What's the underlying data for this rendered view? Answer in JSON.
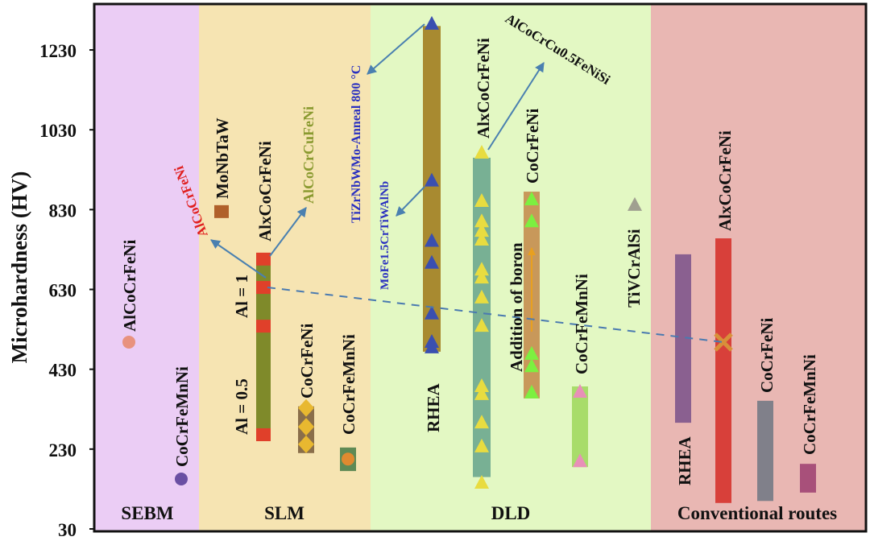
{
  "chart_data": {
    "type": "bar",
    "subtype": "floating range bars with markers",
    "title": "",
    "xlabel": "",
    "ylabel": "Microhardness (HV)",
    "ylim": [
      30,
      1330
    ],
    "yticks": [
      30,
      230,
      430,
      630,
      830,
      1030,
      1230
    ],
    "grid": false,
    "regions": [
      {
        "name": "SEBM",
        "color": "#ebcdf5"
      },
      {
        "name": "SLM",
        "color": "#f6e4b2"
      },
      {
        "name": "DLD",
        "color": "#e3f8c3"
      },
      {
        "name": "Conventional routes",
        "color": "#e9b7b3"
      }
    ],
    "items": [
      {
        "label": "AlCoCrFeNi",
        "region": "SEBM",
        "range": null,
        "points": [
          498
        ],
        "marker": "circle",
        "marker_color": "#e8927e",
        "bar_color": null
      },
      {
        "label": "CoCrFeMnNi",
        "region": "SEBM",
        "range": null,
        "points": [
          155
        ],
        "marker": "circle",
        "marker_color": "#6a4fa3",
        "bar_color": null
      },
      {
        "label": "MoNbTaW",
        "region": "SLM",
        "range": null,
        "points": [
          825
        ],
        "marker": "square",
        "marker_color": "#b0602a",
        "bar_color": null
      },
      {
        "label": "AlxCoCrFeNi",
        "region": "SLM",
        "range": [
          250,
          714
        ],
        "points": [
          706,
          635,
          538,
          266
        ],
        "marker": "square",
        "marker_color": "#e0402a",
        "bar_color": "#7f8a2a"
      },
      {
        "label": "CoCrFeNi",
        "region": "SLM",
        "range": [
          220,
          337
        ],
        "points": [
          333,
          286,
          242
        ],
        "marker": "diamond",
        "marker_color": "#e8b830",
        "bar_color": "#8a6e4a"
      },
      {
        "label": "CoCrFeMnNi",
        "region": "SLM",
        "range": [
          175,
          234
        ],
        "points": [
          205
        ],
        "marker": "circle",
        "marker_color": "#e08a30",
        "bar_color": "#5f8a55"
      },
      {
        "label": "RHEA",
        "region": "DLD",
        "range": [
          474,
          1290
        ],
        "points": [
          1295,
          902,
          751,
          696,
          569,
          498,
          484
        ],
        "marker": "triangle",
        "marker_color": "#3a4fb0",
        "bar_color": "#a88a30"
      },
      {
        "label": "AlxCoCrFeNi",
        "region": "DLD",
        "range": [
          160,
          960
        ],
        "points": [
          972,
          851,
          800,
          776,
          754,
          679,
          659,
          609,
          538,
          387,
          367,
          296,
          236,
          145
        ],
        "marker": "triangle",
        "marker_color": "#e8dc40",
        "bar_color": "#78b094"
      },
      {
        "label": "CoCrFeNi",
        "region": "DLD",
        "range": [
          357,
          875
        ],
        "points": [
          855,
          800,
          468,
          437,
          371
        ],
        "marker": "triangle",
        "marker_color": "#7cf040",
        "bar_color": "#c8985a"
      },
      {
        "label": "CoCrFeMnNi",
        "region": "DLD",
        "range": [
          185,
          387
        ],
        "points": [
          373,
          199
        ],
        "marker": "triangle",
        "marker_color": "#e890b8",
        "bar_color": "#a8dc6a"
      },
      {
        "label": "TiVCrAlSi",
        "region": "DLD",
        "range": null,
        "points": [
          841
        ],
        "marker": "triangle",
        "marker_color": "#a0a090",
        "bar_color": null
      },
      {
        "label": "RHEA",
        "region": "Conventional routes",
        "range": [
          296,
          718
        ],
        "points": [],
        "marker": null,
        "marker_color": null,
        "bar_color": "#8a6090"
      },
      {
        "label": "AlxCoCrFeNi",
        "region": "Conventional routes",
        "range": [
          95,
          758
        ],
        "points": [
          498
        ],
        "marker": "cross",
        "marker_color": "#d8903a",
        "bar_color": "#d8403a"
      },
      {
        "label": "CoCrFeNi",
        "region": "Conventional routes",
        "range": [
          100,
          351
        ],
        "points": [],
        "marker": null,
        "marker_color": null,
        "bar_color": "#80808a"
      },
      {
        "label": "CoCrFeMnNi",
        "region": "Conventional routes",
        "range": [
          121,
          193
        ],
        "points": [],
        "marker": null,
        "marker_color": null,
        "bar_color": "#a8507a"
      }
    ],
    "annotations": [
      {
        "text": "AlCoCrFeNi",
        "color": "#e02020"
      },
      {
        "text": "AlCoCrCuFeNi",
        "color": "#8a9a30"
      },
      {
        "text": "Al = 1",
        "color": "#111111"
      },
      {
        "text": "Al = 0.5",
        "color": "#111111"
      },
      {
        "text": "TiZrNbWMo-Anneal 800 °C",
        "color": "#2a30c0"
      },
      {
        "text": "MoFe1.5CrTiWAlNb",
        "color": "#2a30c0"
      },
      {
        "text": "AlCoCrCu0.5FeNiSi",
        "color": "#111111"
      },
      {
        "text": "Addition of boron",
        "color": "#111111"
      }
    ]
  }
}
